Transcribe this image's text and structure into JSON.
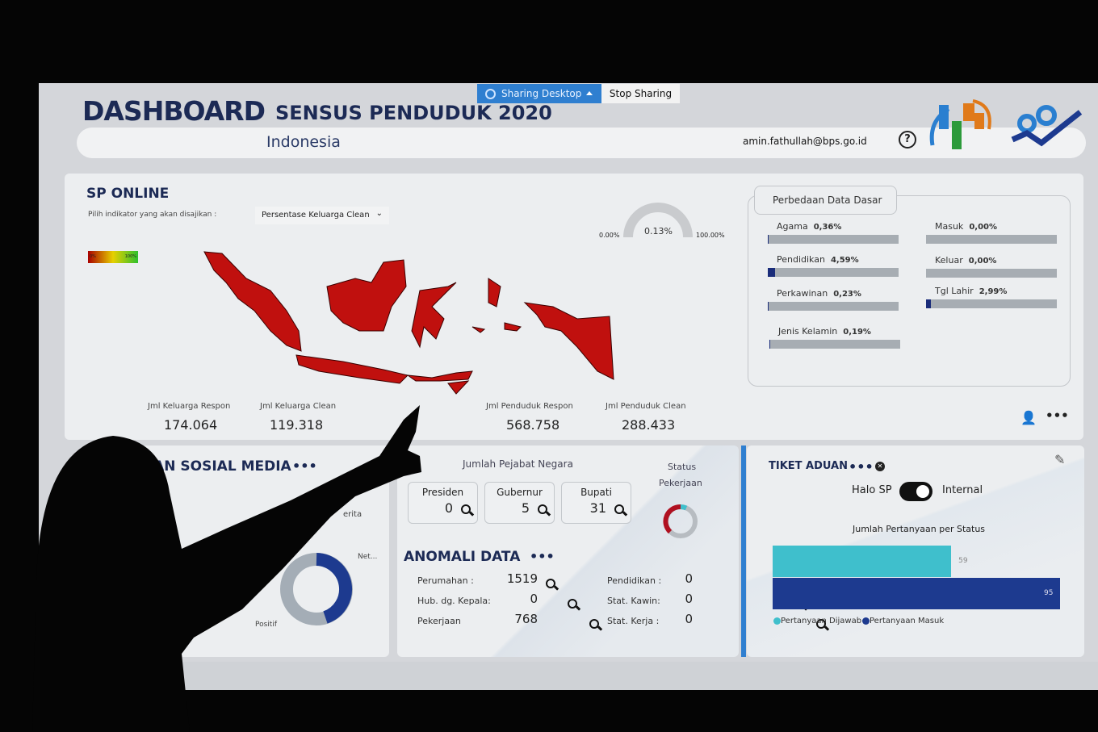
{
  "header": {
    "title": "DASHBOARD",
    "subtitle": "SENSUS PENDUDUK 2020",
    "region": "Indonesia",
    "user_email": "amin.fathullah@bps.go.id",
    "help_icon": "question-circle-icon"
  },
  "sharing": {
    "status": "Sharing Desktop",
    "stop": "Stop Sharing"
  },
  "sp_online": {
    "title": "SP ONLINE",
    "indicator_label": "Pilih indikator yang akan disajikan :",
    "indicator_value": "Persentase Keluarga Clean",
    "legend_min": "0%",
    "legend_max": "100%",
    "gauge": {
      "min": "0.00%",
      "value": "0.13%",
      "max": "100.00%",
      "fraction": 0.0013
    },
    "stats": [
      {
        "label": "Jml Keluarga Respon",
        "value": "174.064"
      },
      {
        "label": "Jml Keluarga Clean",
        "value": "119.318"
      },
      {
        "label": "Jml Penduduk Respon",
        "value": "568.758"
      },
      {
        "label": "Jml Penduduk Clean",
        "value": "288.433"
      }
    ],
    "map_color": "#c0100e"
  },
  "perbedaan": {
    "title": "Perbedaan Data Dasar",
    "items": [
      {
        "label": "Agama",
        "value": "0,36%",
        "pct": 0.36
      },
      {
        "label": "Pendidikan",
        "value": "4,59%",
        "pct": 4.59
      },
      {
        "label": "Perkawinan",
        "value": "0,23%",
        "pct": 0.23
      },
      {
        "label": "Jenis Kelamin",
        "value": "0,19%",
        "pct": 0.19
      },
      {
        "label": "Masuk",
        "value": "0,00%",
        "pct": 0
      },
      {
        "label": "Keluar",
        "value": "0,00%",
        "pct": 0
      },
      {
        "label": "Tgl Lahir",
        "value": "2,99%",
        "pct": 2.99
      }
    ]
  },
  "sosial": {
    "title": "DAN SOSIAL MEDIA",
    "partial_label": "erita",
    "donut_labels": [
      "Net...",
      "Positif"
    ]
  },
  "pejabat": {
    "title": "Jumlah Pejabat Negara",
    "cards": [
      {
        "label": "Presiden",
        "value": "0"
      },
      {
        "label": "Gubernur",
        "value": "5"
      },
      {
        "label": "Bupati",
        "value": "31"
      }
    ],
    "status_title_1": "Status",
    "status_title_2": "Pekerjaan"
  },
  "anomali": {
    "title": "ANOMALI DATA",
    "items": [
      {
        "label": "Perumahan :",
        "value": "1519"
      },
      {
        "label": "Hub. dg. Kepala:",
        "value": "0"
      },
      {
        "label": "Pekerjaan",
        "value": "768"
      },
      {
        "label": "Pendidikan :",
        "value": "0"
      },
      {
        "label": "Stat. Kawin:",
        "value": "0"
      },
      {
        "label": "Stat. Kerja :",
        "value": "0"
      }
    ]
  },
  "tiket": {
    "title": "TIKET ADUAN",
    "toggle_left": "Halo SP",
    "toggle_right": "Internal",
    "toggle_on": true,
    "chart_data": {
      "type": "bar",
      "title": "Jumlah Pertanyaan per Status",
      "series": [
        {
          "name": "Pertanyaan Dijawab",
          "value": 59,
          "color": "#3fbfcc"
        },
        {
          "name": "Pertanyaan Masuk",
          "value": 95,
          "color": "#1d3a8f"
        }
      ]
    }
  }
}
